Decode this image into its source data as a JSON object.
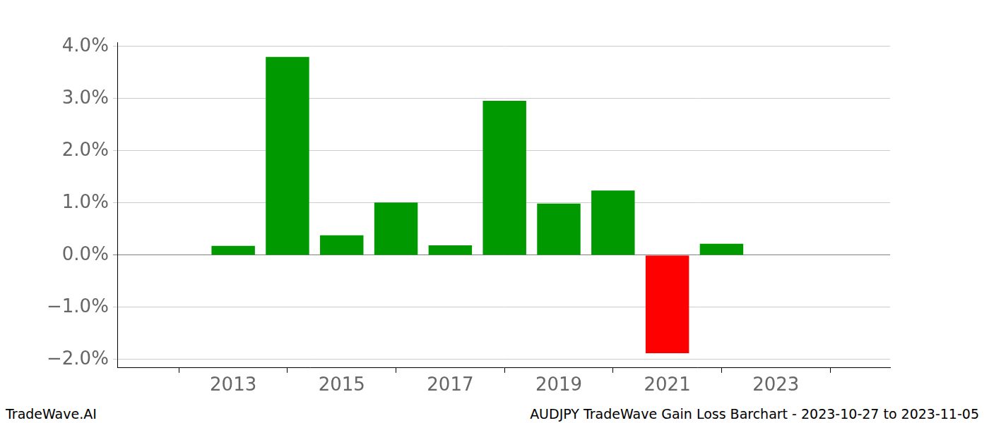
{
  "chart_data": {
    "type": "bar",
    "x": [
      2013,
      2014,
      2015,
      2016,
      2017,
      2018,
      2019,
      2020,
      2021,
      2022
    ],
    "values": [
      0.18,
      3.8,
      0.38,
      1.01,
      0.19,
      2.96,
      0.99,
      1.24,
      -1.88,
      0.22
    ],
    "colors": [
      "#009900",
      "#009900",
      "#009900",
      "#009900",
      "#009900",
      "#009900",
      "#009900",
      "#009900",
      "#ff0000",
      "#009900"
    ],
    "xlim": [
      2012.06,
      2023.92
    ],
    "xticks": [
      2013,
      2015,
      2017,
      2019,
      2021,
      2023
    ],
    "ylim": [
      -2.16,
      4.08
    ],
    "yticks": [
      {
        "value": -2,
        "label": "−2.0%"
      },
      {
        "value": -1,
        "label": "−1.0%"
      },
      {
        "value": 0,
        "label": "0.0%"
      },
      {
        "value": 1,
        "label": "1.0%"
      },
      {
        "value": 2,
        "label": "2.0%"
      },
      {
        "value": 3,
        "label": "3.0%"
      },
      {
        "value": 4,
        "label": "4.0%"
      }
    ],
    "grid": true,
    "annotations": [
      "TradeWave.AI",
      "AUDJPY TradeWave Gain Loss Barchart - 2023-10-27 to 2023-11-05"
    ]
  }
}
